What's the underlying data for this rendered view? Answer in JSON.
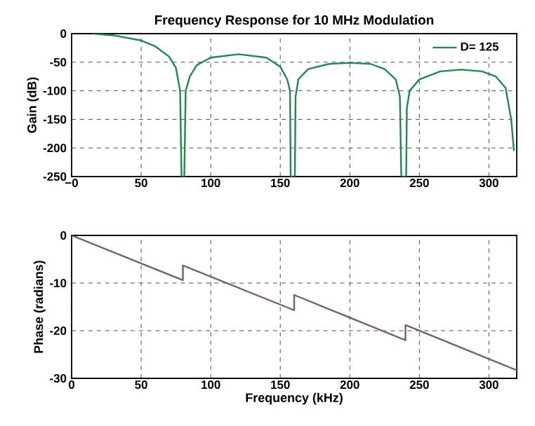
{
  "chart_data": [
    {
      "type": "line",
      "title": "Frequency Response for 10 MHz Modulation",
      "ylabel": "Gain (dB)",
      "xlim": [
        0,
        320
      ],
      "ylim": [
        -250,
        0
      ],
      "xticks": [
        {
          "value": 0,
          "label": "−0"
        },
        50,
        100,
        150,
        200,
        250,
        300
      ],
      "yticks": [
        -250,
        -200,
        -150,
        -100,
        -50,
        0
      ],
      "grid": true,
      "legend": "top right",
      "line_style": "solid",
      "series": [
        {
          "name": "D= 125",
          "color": "#1b8a4c",
          "x": [
            15,
            30,
            50,
            60,
            70,
            75,
            78,
            79,
            81,
            82,
            85,
            90,
            100,
            120,
            140,
            150,
            155,
            157,
            157.5,
            160.5,
            161,
            163,
            170,
            185,
            200,
            215,
            225,
            233,
            236,
            237,
            240.5,
            241,
            243,
            250,
            265,
            280,
            295,
            305,
            312,
            316,
            318
          ],
          "values": [
            0,
            -3,
            -12,
            -22,
            -40,
            -60,
            -100,
            -250,
            -250,
            -100,
            -75,
            -55,
            -42,
            -36,
            -42,
            -58,
            -80,
            -100,
            -250,
            -250,
            -110,
            -80,
            -62,
            -53,
            -51,
            -53,
            -62,
            -80,
            -110,
            -250,
            -250,
            -130,
            -100,
            -80,
            -66,
            -63,
            -66,
            -75,
            -95,
            -150,
            -205
          ]
        }
      ]
    },
    {
      "type": "line",
      "xlabel": "Frequency (kHz)",
      "ylabel": "Phase (radians)",
      "xlim": [
        0,
        320
      ],
      "ylim": [
        -30,
        0
      ],
      "xticks": [
        0,
        50,
        100,
        150,
        200,
        250,
        300
      ],
      "yticks": [
        -30,
        -20,
        -10,
        0
      ],
      "grid": true,
      "line_style": "solid",
      "series": [
        {
          "color": "#7a5c78",
          "x": [
            0,
            80,
            80,
            160,
            160,
            240,
            240,
            320
          ],
          "values": [
            0,
            -9.4,
            -6.3,
            -15.7,
            -12.5,
            -22,
            -18.8,
            -28.3
          ]
        }
      ]
    }
  ]
}
